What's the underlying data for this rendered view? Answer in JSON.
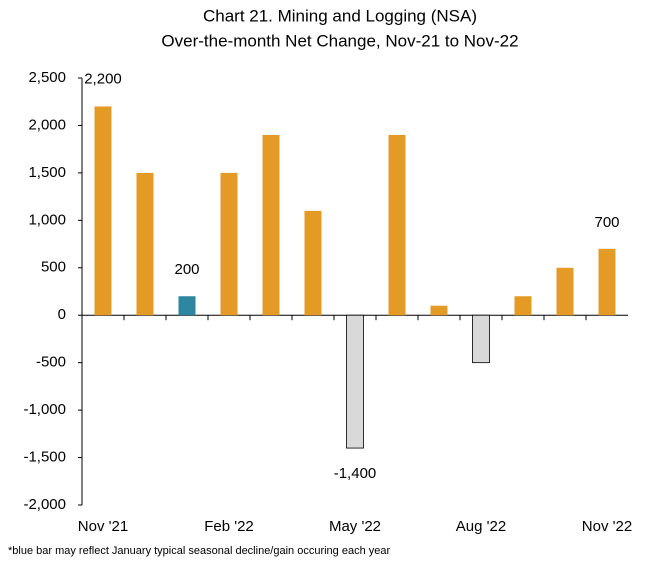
{
  "chart_data": {
    "type": "bar",
    "title": "Chart 21. Mining and Logging (NSA)",
    "subtitle": "Over-the-month Net Change, Nov-21 to Nov-22",
    "note": "*blue bar may reflect January typical seasonal decline/gain occuring each year",
    "categories": [
      "Nov '21",
      null,
      null,
      "Feb '22",
      null,
      null,
      "May '22",
      null,
      null,
      "Aug '22",
      null,
      null,
      "Nov '22"
    ],
    "values": [
      2200,
      1500,
      200,
      1500,
      1900,
      1100,
      -1400,
      1900,
      100,
      -500,
      200,
      500,
      700
    ],
    "value_labels": [
      "2,200",
      null,
      "200",
      null,
      null,
      null,
      "-1,400",
      null,
      null,
      null,
      null,
      null,
      "700"
    ],
    "colors": [
      "#e49b26",
      "#e49b26",
      "#2e86a0",
      "#e49b26",
      "#e49b26",
      "#e49b26",
      "#d9d9d9",
      "#e49b26",
      "#e49b26",
      "#d9d9d9",
      "#e49b26",
      "#e49b26",
      "#e49b26"
    ],
    "ylim": [
      -2000,
      2500
    ],
    "yticks": [
      {
        "value": -2000,
        "label": "-2,000"
      },
      {
        "value": -1500,
        "label": "-1,500"
      },
      {
        "value": -1000,
        "label": "-1,000"
      },
      -500,
      0,
      500,
      {
        "value": 1000,
        "label": "1,000"
      },
      {
        "value": 1500,
        "label": "1,500"
      },
      {
        "value": 2000,
        "label": "2,000"
      },
      {
        "value": 2500,
        "label": "2,500"
      }
    ],
    "grid": false
  }
}
